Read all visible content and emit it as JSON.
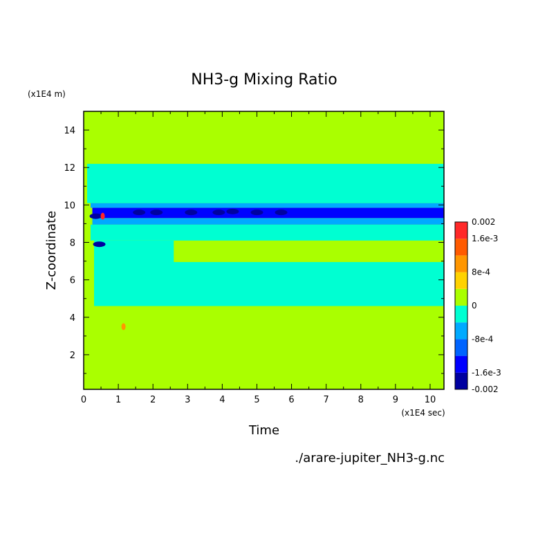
{
  "chart_data": {
    "type": "heatmap",
    "title": "NH3-g Mixing Ratio",
    "xlabel": "Time",
    "ylabel": "Z-coordinate",
    "x_unit": "(x1E4 sec)",
    "y_unit": "(x1E4 m)",
    "xlim": [
      0,
      10.4
    ],
    "ylim": [
      0.15,
      15.0
    ],
    "x_ticks": [
      0,
      1,
      2,
      3,
      4,
      5,
      6,
      7,
      8,
      9,
      10
    ],
    "y_ticks": [
      2,
      4,
      6,
      8,
      10,
      12,
      14
    ],
    "colorbar": {
      "range": [
        -0.002,
        0.002
      ],
      "labels": [
        "0.002",
        "1.6e-3",
        "8e-4",
        "0",
        "-8e-4",
        "-1.6e-3",
        "-0.002"
      ],
      "label_values": [
        0.002,
        0.0016,
        0.0008,
        0,
        -0.0008,
        -0.0016,
        -0.002
      ],
      "levels": [
        {
          "from": -0.002,
          "to": -0.0016,
          "color": "#0000a0"
        },
        {
          "from": -0.0016,
          "to": -0.0012,
          "color": "#0000ff"
        },
        {
          "from": -0.0012,
          "to": -0.0008,
          "color": "#0064ff"
        },
        {
          "from": -0.0008,
          "to": -0.0004,
          "color": "#00aaff"
        },
        {
          "from": -0.0004,
          "to": 0,
          "color": "#00ffd2"
        },
        {
          "from": 0,
          "to": 0.0004,
          "color": "#aaff00"
        },
        {
          "from": 0.0004,
          "to": 0.0008,
          "color": "#ffd200"
        },
        {
          "from": 0.0008,
          "to": 0.0012,
          "color": "#ff9600"
        },
        {
          "from": 0.0012,
          "to": 0.0016,
          "color": "#ff5a00"
        },
        {
          "from": 0.0016,
          "to": 0.002,
          "color": "#ff2828"
        }
      ]
    },
    "background_level": "0..4e-4",
    "bands": [
      {
        "t": [
          0.25,
          10.4
        ],
        "z": [
          14.1,
          14.85
        ],
        "value": 0.0002
      },
      {
        "t": [
          0.25,
          10.4
        ],
        "z": [
          13.1,
          14.1
        ],
        "value": 0.0002
      },
      {
        "t": [
          0.1,
          10.4
        ],
        "z": [
          12.2,
          13.1
        ],
        "value": 0.0002
      },
      {
        "t": [
          0.1,
          10.4
        ],
        "z": [
          10.1,
          12.2
        ],
        "value": -0.0002
      },
      {
        "t": [
          0.2,
          10.4
        ],
        "z": [
          9.85,
          10.1
        ],
        "value": -0.0006
      },
      {
        "t": [
          0.25,
          10.4
        ],
        "z": [
          9.3,
          9.85
        ],
        "value": -0.0013
      },
      {
        "t": [
          0.25,
          10.4
        ],
        "z": [
          8.95,
          9.3
        ],
        "value": -0.0006
      },
      {
        "t": [
          0.2,
          10.4
        ],
        "z": [
          8.1,
          8.95
        ],
        "value": -0.0002
      },
      {
        "t": [
          2.6,
          10.4
        ],
        "z": [
          6.95,
          8.1
        ],
        "value": 0.0002
      },
      {
        "t": [
          0.3,
          10.4
        ],
        "z": [
          4.6,
          8.1
        ],
        "value": -0.0002
      },
      {
        "t": [
          0,
          10.4
        ],
        "z": [
          0.15,
          4.6
        ],
        "value": 0.0002
      }
    ],
    "minima": [
      {
        "t": 0.35,
        "z": 9.4,
        "value": -0.0018
      },
      {
        "t": 0.45,
        "z": 7.9,
        "value": -0.0018
      },
      {
        "t": 1.6,
        "z": 9.6,
        "value": -0.0016
      },
      {
        "t": 2.1,
        "z": 9.6,
        "value": -0.0016
      },
      {
        "t": 3.1,
        "z": 9.6,
        "value": -0.0016
      },
      {
        "t": 3.9,
        "z": 9.6,
        "value": -0.0016
      },
      {
        "t": 4.3,
        "z": 9.65,
        "value": -0.0018
      },
      {
        "t": 5.0,
        "z": 9.6,
        "value": -0.0018
      },
      {
        "t": 5.7,
        "z": 9.6,
        "value": -0.0018
      }
    ],
    "maxima": [
      {
        "t": 0.55,
        "z": 9.4,
        "value": 0.002
      },
      {
        "t": 1.15,
        "z": 3.5,
        "value": 0.0009
      }
    ]
  },
  "footer": {
    "file": "./arare-jupiter_NH3-g.nc"
  }
}
